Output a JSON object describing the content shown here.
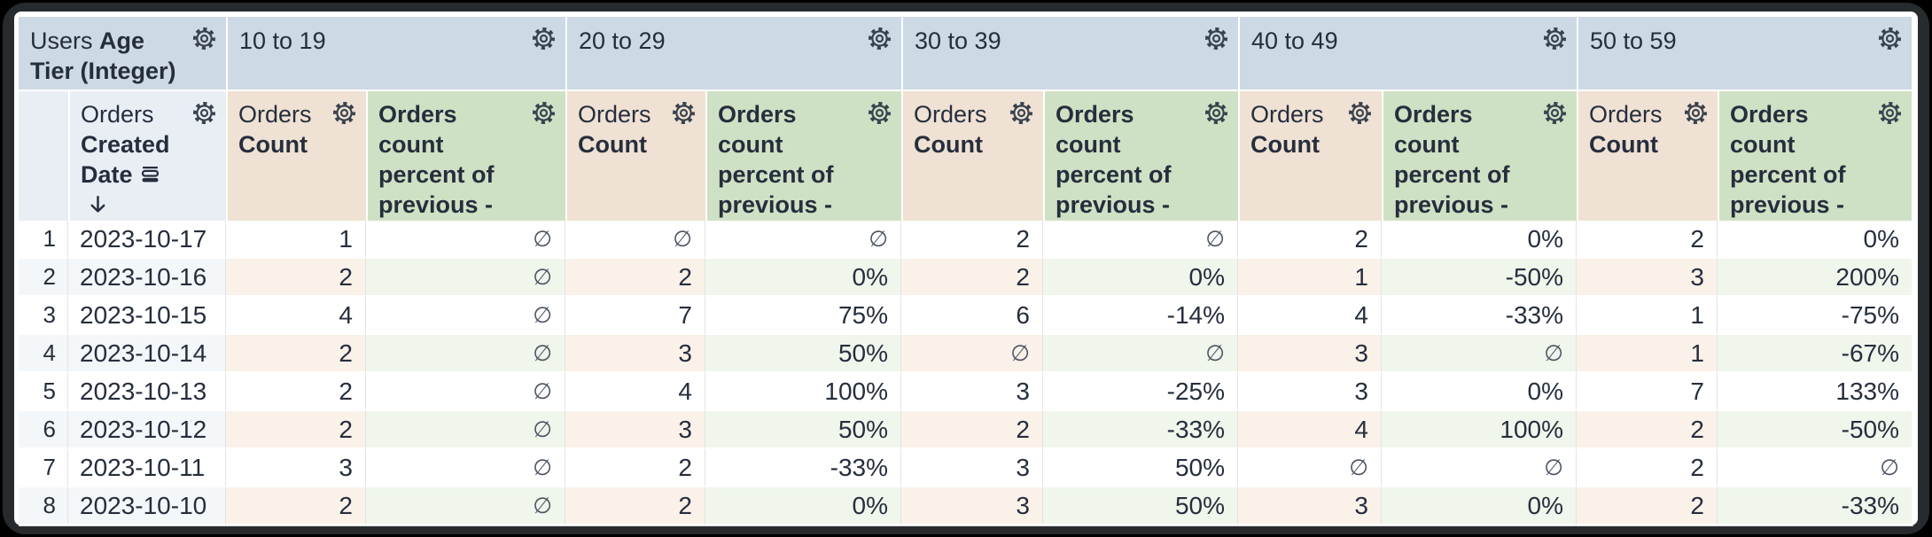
{
  "header": {
    "row_dimension": {
      "view": "Users",
      "field": "Age Tier (Integer)"
    },
    "row_field": {
      "view": "Orders",
      "field": "Created Date"
    },
    "pivot_values": [
      "10 to 19",
      "20 to 29",
      "30 to 39",
      "40 to 49",
      "50 to 59"
    ],
    "measure_count": {
      "view": "Orders",
      "field": "Count"
    },
    "measure_percent_label": "Orders count percent of previous - across rows"
  },
  "null_symbol": "∅",
  "rows": [
    {
      "index": "1",
      "date": "2023-10-17",
      "tiers": [
        {
          "count": "1",
          "pct": "∅"
        },
        {
          "count": "∅",
          "pct": "∅"
        },
        {
          "count": "2",
          "pct": "∅"
        },
        {
          "count": "2",
          "pct": "0%"
        },
        {
          "count": "2",
          "pct": "0%"
        }
      ]
    },
    {
      "index": "2",
      "date": "2023-10-16",
      "tiers": [
        {
          "count": "2",
          "pct": "∅"
        },
        {
          "count": "2",
          "pct": "0%"
        },
        {
          "count": "2",
          "pct": "0%"
        },
        {
          "count": "1",
          "pct": "-50%"
        },
        {
          "count": "3",
          "pct": "200%"
        }
      ]
    },
    {
      "index": "3",
      "date": "2023-10-15",
      "tiers": [
        {
          "count": "4",
          "pct": "∅"
        },
        {
          "count": "7",
          "pct": "75%"
        },
        {
          "count": "6",
          "pct": "-14%"
        },
        {
          "count": "4",
          "pct": "-33%"
        },
        {
          "count": "1",
          "pct": "-75%"
        }
      ]
    },
    {
      "index": "4",
      "date": "2023-10-14",
      "tiers": [
        {
          "count": "2",
          "pct": "∅"
        },
        {
          "count": "3",
          "pct": "50%"
        },
        {
          "count": "∅",
          "pct": "∅"
        },
        {
          "count": "3",
          "pct": "∅"
        },
        {
          "count": "1",
          "pct": "-67%"
        }
      ]
    },
    {
      "index": "5",
      "date": "2023-10-13",
      "tiers": [
        {
          "count": "2",
          "pct": "∅"
        },
        {
          "count": "4",
          "pct": "100%"
        },
        {
          "count": "3",
          "pct": "-25%"
        },
        {
          "count": "3",
          "pct": "0%"
        },
        {
          "count": "7",
          "pct": "133%"
        }
      ]
    },
    {
      "index": "6",
      "date": "2023-10-12",
      "tiers": [
        {
          "count": "2",
          "pct": "∅"
        },
        {
          "count": "3",
          "pct": "50%"
        },
        {
          "count": "2",
          "pct": "-33%"
        },
        {
          "count": "4",
          "pct": "100%"
        },
        {
          "count": "2",
          "pct": "-50%"
        }
      ]
    },
    {
      "index": "7",
      "date": "2023-10-11",
      "tiers": [
        {
          "count": "3",
          "pct": "∅"
        },
        {
          "count": "2",
          "pct": "-33%"
        },
        {
          "count": "3",
          "pct": "50%"
        },
        {
          "count": "∅",
          "pct": "∅"
        },
        {
          "count": "2",
          "pct": "∅"
        }
      ]
    },
    {
      "index": "8",
      "date": "2023-10-10",
      "tiers": [
        {
          "count": "2",
          "pct": "∅"
        },
        {
          "count": "2",
          "pct": "0%"
        },
        {
          "count": "3",
          "pct": "50%"
        },
        {
          "count": "3",
          "pct": "0%"
        },
        {
          "count": "2",
          "pct": "-33%"
        }
      ]
    }
  ],
  "colors": {
    "pivot_header_bg": "#cdd9e4",
    "dimension_header_bg": "#e9eef5",
    "count_header_bg": "#efe1d3",
    "percent_header_bg": "#cfe1c4",
    "index_row_tint": "#f4f7fa",
    "count_row_tint": "#faf1e9",
    "percent_row_tint": "#f0f6ec",
    "text": "#262e3d",
    "null_text": "#4b5462"
  }
}
